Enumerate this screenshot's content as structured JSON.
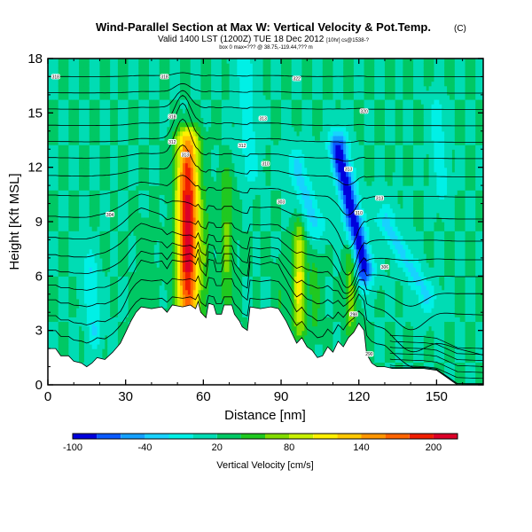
{
  "title": "Wind-Parallel Section at Max W: Vertical Velocity & Pot.Temp.",
  "title_mark": "(C)",
  "subtitle": "Valid 1400 LST (1200Z) TUE 18 Dec 2012",
  "subtitle_small": "(1200Z)",
  "subtitle_right": "[10hr] cs@1538-?",
  "subtitle_line2": "box 0 max=??? @ 38.75,-119.44,??? m",
  "chart_data": {
    "type": "heatmap",
    "xlabel": "Distance [nm]",
    "ylabel": "Height [Kft MSL]",
    "xlim": [
      0,
      168
    ],
    "ylim": [
      0,
      18
    ],
    "xticks": [
      "0",
      "30",
      "60",
      "90",
      "120",
      "150"
    ],
    "yticks": [
      "0",
      "3",
      "6",
      "9",
      "12",
      "15",
      "18"
    ],
    "colorbar": {
      "label": "Vertical Velocity [cm/s]",
      "tick_labels": [
        "-100",
        "-40",
        "20",
        "80",
        "140",
        "200"
      ],
      "min": -100,
      "max": 220,
      "bins": [
        -100,
        -80,
        -60,
        -40,
        -20,
        0,
        20,
        40,
        60,
        80,
        100,
        120,
        140,
        160,
        180,
        200,
        220
      ],
      "colors": [
        "#0000dc",
        "#0a5aff",
        "#14a0ff",
        "#18d2ff",
        "#00f0e6",
        "#00dcb4",
        "#00c864",
        "#20c820",
        "#82dc00",
        "#c8f000",
        "#fff000",
        "#ffc800",
        "#ff9600",
        "#ff6400",
        "#f01e00",
        "#dc0028"
      ]
    },
    "background_level": 20,
    "terrain": [
      [
        0,
        2.0
      ],
      [
        3,
        2.0
      ],
      [
        5,
        1.6
      ],
      [
        8,
        1.6
      ],
      [
        10,
        1.3
      ],
      [
        13,
        1.2
      ],
      [
        15,
        1.0
      ],
      [
        17,
        1.2
      ],
      [
        19,
        1.5
      ],
      [
        22,
        1.4
      ],
      [
        25,
        1.8
      ],
      [
        28,
        2.3
      ],
      [
        30,
        2.9
      ],
      [
        32,
        3.5
      ],
      [
        34,
        4.0
      ],
      [
        36,
        4.3
      ],
      [
        40,
        4.2
      ],
      [
        44,
        4.3
      ],
      [
        46,
        4.0
      ],
      [
        48,
        4.4
      ],
      [
        52,
        4.3
      ],
      [
        55,
        4.4
      ],
      [
        57,
        4.2
      ],
      [
        58,
        4.6
      ],
      [
        59,
        4.0
      ],
      [
        61,
        3.7
      ],
      [
        62,
        4.5
      ],
      [
        64,
        4.4
      ],
      [
        65,
        3.9
      ],
      [
        67,
        3.9
      ],
      [
        68,
        4.4
      ],
      [
        71,
        4.4
      ],
      [
        72,
        3.9
      ],
      [
        74,
        3.5
      ],
      [
        75,
        3.2
      ],
      [
        77,
        3.0
      ],
      [
        78,
        4.3
      ],
      [
        82,
        4.2
      ],
      [
        86,
        4.3
      ],
      [
        89,
        4.2
      ],
      [
        92,
        3.5
      ],
      [
        94,
        2.9
      ],
      [
        96,
        2.3
      ],
      [
        98,
        2.6
      ],
      [
        100,
        2.1
      ],
      [
        102,
        1.9
      ],
      [
        104,
        1.5
      ],
      [
        106,
        1.6
      ],
      [
        108,
        2.1
      ],
      [
        110,
        1.8
      ],
      [
        112,
        2.4
      ],
      [
        114,
        2.1
      ],
      [
        116,
        2.6
      ],
      [
        118,
        2.9
      ],
      [
        120,
        3.4
      ],
      [
        122,
        3.0
      ],
      [
        123,
        1.7
      ],
      [
        125,
        1.2
      ],
      [
        127,
        1.0
      ],
      [
        130,
        1.0
      ],
      [
        133,
        0.9
      ],
      [
        136,
        0.9
      ],
      [
        140,
        0.9
      ],
      [
        145,
        0.9
      ],
      [
        150,
        0.8
      ],
      [
        152,
        0.6
      ],
      [
        154,
        0.4
      ],
      [
        156,
        0.2
      ],
      [
        158,
        0.0
      ]
    ],
    "updrafts": [
      {
        "x": 54,
        "zbot": 3.5,
        "ztop": 13.5,
        "halfwidth": 3.0,
        "peak": 215
      },
      {
        "x": 69,
        "zbot": 4.5,
        "ztop": 11.5,
        "halfwidth": 1.8,
        "peak": 65
      },
      {
        "x": 61,
        "zbot": 4.0,
        "ztop": 10.0,
        "halfwidth": 1.5,
        "peak": 40
      },
      {
        "x": 97,
        "zbot": 3.0,
        "ztop": 8.5,
        "halfwidth": 1.8,
        "peak": 105
      },
      {
        "x": 103,
        "zbot": 3.0,
        "ztop": 7.0,
        "halfwidth": 1.5,
        "peak": 50
      },
      {
        "x": 117,
        "zbot": 3.0,
        "ztop": 7.5,
        "halfwidth": 1.6,
        "peak": 75
      },
      {
        "x": 90,
        "zbot": 3.0,
        "ztop": 6.5,
        "halfwidth": 1.5,
        "peak": 40
      },
      {
        "x": 38,
        "zbot": 4.5,
        "ztop": 8.5,
        "halfwidth": 2.0,
        "peak": 35
      }
    ],
    "downdrafts": [
      {
        "x1": 112,
        "z1": 13.0,
        "x2": 122,
        "z2": 6.5,
        "halfwidth": 2.5,
        "peak": -95
      },
      {
        "x1": 96,
        "z1": 12.0,
        "x2": 103,
        "z2": 9.0,
        "halfwidth": 3.0,
        "peak": -25
      },
      {
        "x1": 130,
        "z1": 9.0,
        "x2": 146,
        "z2": 5.0,
        "halfwidth": 3.0,
        "peak": -25
      },
      {
        "x1": 16,
        "z1": 6.5,
        "x2": 18,
        "z2": 3.0,
        "halfwidth": 2.0,
        "peak": -20
      },
      {
        "x1": 150,
        "z1": 15.0,
        "x2": 152,
        "z2": 11.0,
        "halfwidth": 2.0,
        "peak": -15
      },
      {
        "x1": 76,
        "z1": 18.0,
        "x2": 78,
        "z2": 12.0,
        "halfwidth": 2.5,
        "peak": -12
      }
    ],
    "isentrope_levels": [
      2.3,
      3.3,
      4.3,
      5.2,
      6.1,
      7.0,
      8.0,
      9.2,
      10.4,
      11.5,
      12.5,
      13.4,
      14.3,
      15.2,
      16.1,
      17.0
    ],
    "isentrope_labels": [
      {
        "x": 3,
        "z": 17.0,
        "text": "318"
      },
      {
        "x": 45,
        "z": 17.0,
        "text": "318"
      },
      {
        "x": 96,
        "z": 16.9,
        "text": "322"
      },
      {
        "x": 48,
        "z": 14.8,
        "text": "318"
      },
      {
        "x": 83,
        "z": 14.7,
        "text": "313"
      },
      {
        "x": 122,
        "z": 15.1,
        "text": "320"
      },
      {
        "x": 48,
        "z": 13.4,
        "text": "312"
      },
      {
        "x": 53,
        "z": 12.7,
        "text": "313"
      },
      {
        "x": 75,
        "z": 13.2,
        "text": "312"
      },
      {
        "x": 84,
        "z": 12.2,
        "text": "310"
      },
      {
        "x": 116,
        "z": 11.9,
        "text": "313"
      },
      {
        "x": 90,
        "z": 10.1,
        "text": "303"
      },
      {
        "x": 128,
        "z": 10.3,
        "text": "313"
      },
      {
        "x": 24,
        "z": 9.4,
        "text": "304"
      },
      {
        "x": 120,
        "z": 9.5,
        "text": "310"
      },
      {
        "x": 130,
        "z": 6.5,
        "text": "306"
      },
      {
        "x": 118,
        "z": 3.9,
        "text": "298"
      },
      {
        "x": 124,
        "z": 1.7,
        "text": "290"
      }
    ]
  }
}
